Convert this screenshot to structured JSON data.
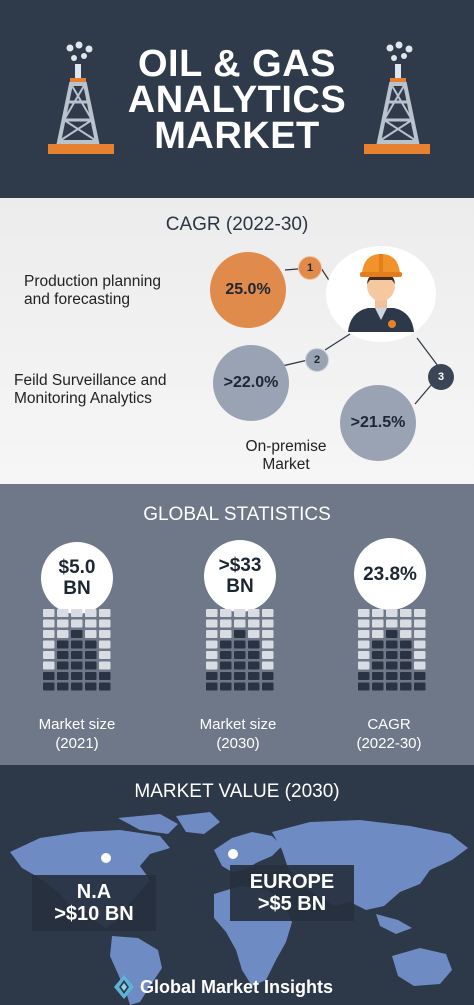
{
  "header": {
    "title_line1": "OIL & GAS",
    "title_line2": "ANALYTICS",
    "title_line3": "MARKET"
  },
  "cagr": {
    "title": "CAGR (2022-30)",
    "items": [
      {
        "number": "1",
        "label_line1": "Production planning",
        "label_line2": "and forecasting",
        "value": "25.0%"
      },
      {
        "number": "2",
        "label_line1": "Feild Surveillance and",
        "label_line2": "Monitoring Analytics",
        "value": ">22.0%"
      },
      {
        "number": "3",
        "label_line1": "On-premise",
        "label_line2": "Market",
        "value": ">21.5%"
      }
    ]
  },
  "global_statistics": {
    "title": "GLOBAL STATISTICS",
    "stats": [
      {
        "value_line1": "$5.0",
        "value_line2": "BN",
        "label_line1": "Market size",
        "label_line2": "(2021)"
      },
      {
        "value_line1": ">$33",
        "value_line2": "BN",
        "label_line1": "Market size",
        "label_line2": "(2030)"
      },
      {
        "value_line1": "23.8%",
        "value_line2": "",
        "label_line1": "CAGR",
        "label_line2": "(2022-30)"
      }
    ]
  },
  "market_value": {
    "title": "MARKET VALUE (2030)",
    "regions": [
      {
        "name": "N.A",
        "value": ">$10 BN"
      },
      {
        "name": "EUROPE",
        "value": ">$5 BN"
      }
    ]
  },
  "brand": {
    "name": "Global Market Insights"
  },
  "colors": {
    "dark_navy": "#2f3a4a",
    "orange": "#e08a4c",
    "slate_bubble": "#9aa3b3",
    "mid_gray": "#6e7888",
    "map_blue": "#6e8bc4"
  },
  "icons": [
    "oil-rig-icon",
    "oil-worker-icon",
    "building-grid-icon",
    "world-map",
    "location-dot-icon",
    "brand-logo-icon"
  ]
}
